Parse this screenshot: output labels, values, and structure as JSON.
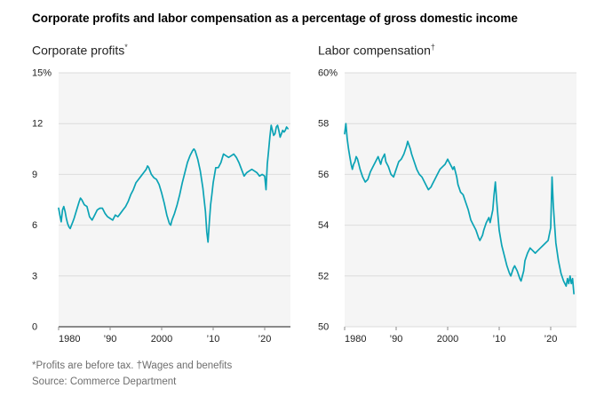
{
  "title": "Corporate profits and labor compensation as a percentage of gross domestic income",
  "footnotes": {
    "line1": "*Profits are before tax. †Wages and benefits",
    "line2": "Source: Commerce Department"
  },
  "theme": {
    "plot_bg": "#f5f5f5",
    "grid_color": "#dcdcdc",
    "axis_color": "#1a1a1a",
    "tick_text_color": "#222222",
    "tick_mark_color": "#8a8a8a",
    "accent": "#0ba3b5"
  },
  "chart_data": [
    {
      "type": "line",
      "title": "Corporate profits",
      "title_marker": "*",
      "ylim": [
        0,
        15
      ],
      "yticks": [
        0,
        3,
        6,
        9,
        12,
        15
      ],
      "ytick_labels": [
        "0",
        "3",
        "6",
        "9",
        "12",
        "15%"
      ],
      "xlim": [
        1980,
        2025
      ],
      "xticks": [
        1980,
        1990,
        2000,
        2010,
        2020
      ],
      "xtick_labels": [
        "1980",
        "’90",
        "2000",
        "’10",
        "’20"
      ],
      "baseline": 0,
      "grid": true,
      "legend": "none",
      "series": [
        {
          "name": "Corporate profits share of gross domestic income (%)",
          "color": "#0ba3b5",
          "points": [
            [
              1980,
              7.0
            ],
            [
              1980.25,
              6.6
            ],
            [
              1980.5,
              6.2
            ],
            [
              1980.75,
              6.9
            ],
            [
              1981,
              7.1
            ],
            [
              1981.25,
              6.8
            ],
            [
              1981.5,
              6.4
            ],
            [
              1981.75,
              6.1
            ],
            [
              1982,
              5.9
            ],
            [
              1982.25,
              5.8
            ],
            [
              1982.5,
              6.0
            ],
            [
              1982.75,
              6.2
            ],
            [
              1983,
              6.4
            ],
            [
              1983.5,
              6.9
            ],
            [
              1984,
              7.4
            ],
            [
              1984.25,
              7.6
            ],
            [
              1984.5,
              7.5
            ],
            [
              1985,
              7.2
            ],
            [
              1985.5,
              7.1
            ],
            [
              1986,
              6.5
            ],
            [
              1986.5,
              6.3
            ],
            [
              1987,
              6.6
            ],
            [
              1987.5,
              6.9
            ],
            [
              1988,
              7.0
            ],
            [
              1988.5,
              7.0
            ],
            [
              1989,
              6.7
            ],
            [
              1989.5,
              6.5
            ],
            [
              1990,
              6.4
            ],
            [
              1990.5,
              6.3
            ],
            [
              1991,
              6.6
            ],
            [
              1991.5,
              6.5
            ],
            [
              1992,
              6.7
            ],
            [
              1992.5,
              6.9
            ],
            [
              1993,
              7.1
            ],
            [
              1993.5,
              7.4
            ],
            [
              1994,
              7.8
            ],
            [
              1994.5,
              8.1
            ],
            [
              1995,
              8.5
            ],
            [
              1995.5,
              8.7
            ],
            [
              1996,
              8.9
            ],
            [
              1996.5,
              9.1
            ],
            [
              1997,
              9.3
            ],
            [
              1997.25,
              9.5
            ],
            [
              1997.5,
              9.4
            ],
            [
              1998,
              9.0
            ],
            [
              1998.5,
              8.8
            ],
            [
              1999,
              8.7
            ],
            [
              1999.5,
              8.4
            ],
            [
              2000,
              7.9
            ],
            [
              2000.5,
              7.3
            ],
            [
              2001,
              6.6
            ],
            [
              2001.5,
              6.1
            ],
            [
              2001.75,
              6.0
            ],
            [
              2002,
              6.3
            ],
            [
              2002.5,
              6.7
            ],
            [
              2003,
              7.2
            ],
            [
              2003.5,
              7.8
            ],
            [
              2004,
              8.5
            ],
            [
              2004.5,
              9.1
            ],
            [
              2005,
              9.7
            ],
            [
              2005.5,
              10.1
            ],
            [
              2006,
              10.4
            ],
            [
              2006.25,
              10.5
            ],
            [
              2006.5,
              10.4
            ],
            [
              2007,
              9.9
            ],
            [
              2007.5,
              9.2
            ],
            [
              2008,
              8.2
            ],
            [
              2008.5,
              6.8
            ],
            [
              2008.75,
              5.6
            ],
            [
              2009,
              5.0
            ],
            [
              2009.25,
              6.2
            ],
            [
              2009.5,
              7.2
            ],
            [
              2009.75,
              7.8
            ],
            [
              2010,
              8.5
            ],
            [
              2010.5,
              9.4
            ],
            [
              2011,
              9.4
            ],
            [
              2011.5,
              9.7
            ],
            [
              2012,
              10.2
            ],
            [
              2012.5,
              10.1
            ],
            [
              2013,
              10.0
            ],
            [
              2013.5,
              10.1
            ],
            [
              2014,
              10.2
            ],
            [
              2014.5,
              10.0
            ],
            [
              2015,
              9.7
            ],
            [
              2015.5,
              9.3
            ],
            [
              2016,
              8.9
            ],
            [
              2016.5,
              9.1
            ],
            [
              2017,
              9.2
            ],
            [
              2017.5,
              9.3
            ],
            [
              2018,
              9.2
            ],
            [
              2018.5,
              9.1
            ],
            [
              2019,
              8.9
            ],
            [
              2019.5,
              9.0
            ],
            [
              2020,
              8.9
            ],
            [
              2020.25,
              8.1
            ],
            [
              2020.5,
              9.6
            ],
            [
              2020.75,
              10.4
            ],
            [
              2021,
              11.2
            ],
            [
              2021.25,
              11.9
            ],
            [
              2021.5,
              11.6
            ],
            [
              2021.75,
              11.3
            ],
            [
              2022,
              11.4
            ],
            [
              2022.25,
              11.8
            ],
            [
              2022.5,
              11.9
            ],
            [
              2022.75,
              11.6
            ],
            [
              2023,
              11.2
            ],
            [
              2023.25,
              11.4
            ],
            [
              2023.5,
              11.6
            ],
            [
              2023.75,
              11.5
            ],
            [
              2024,
              11.6
            ],
            [
              2024.25,
              11.8
            ],
            [
              2024.5,
              11.7
            ]
          ]
        }
      ]
    },
    {
      "type": "line",
      "title": "Labor compensation",
      "title_marker": "†",
      "ylim": [
        50,
        60
      ],
      "yticks": [
        50,
        52,
        54,
        56,
        58,
        60
      ],
      "ytick_labels": [
        "50",
        "52",
        "54",
        "56",
        "58",
        "60%"
      ],
      "xlim": [
        1980,
        2025
      ],
      "xticks": [
        1980,
        1990,
        2000,
        2010,
        2020
      ],
      "xtick_labels": [
        "1980",
        "’90",
        "2000",
        "’10",
        "’20"
      ],
      "baseline": null,
      "grid": true,
      "legend": "none",
      "series": [
        {
          "name": "Labor compensation share of gross domestic income (%)",
          "color": "#0ba3b5",
          "points": [
            [
              1980,
              57.6
            ],
            [
              1980.25,
              58.0
            ],
            [
              1980.5,
              57.4
            ],
            [
              1980.75,
              57.0
            ],
            [
              1981,
              56.7
            ],
            [
              1981.25,
              56.4
            ],
            [
              1981.5,
              56.2
            ],
            [
              1981.75,
              56.4
            ],
            [
              1982,
              56.5
            ],
            [
              1982.25,
              56.7
            ],
            [
              1982.5,
              56.6
            ],
            [
              1982.75,
              56.4
            ],
            [
              1983,
              56.2
            ],
            [
              1983.5,
              55.9
            ],
            [
              1984,
              55.7
            ],
            [
              1984.5,
              55.8
            ],
            [
              1985,
              56.1
            ],
            [
              1985.5,
              56.3
            ],
            [
              1986,
              56.5
            ],
            [
              1986.5,
              56.7
            ],
            [
              1987,
              56.4
            ],
            [
              1987.25,
              56.6
            ],
            [
              1987.75,
              56.8
            ],
            [
              1988,
              56.5
            ],
            [
              1988.5,
              56.3
            ],
            [
              1989,
              56.0
            ],
            [
              1989.5,
              55.9
            ],
            [
              1990,
              56.2
            ],
            [
              1990.5,
              56.5
            ],
            [
              1991,
              56.6
            ],
            [
              1991.5,
              56.8
            ],
            [
              1992,
              57.1
            ],
            [
              1992.25,
              57.3
            ],
            [
              1992.75,
              57.0
            ],
            [
              1993,
              56.8
            ],
            [
              1993.5,
              56.5
            ],
            [
              1994,
              56.2
            ],
            [
              1994.5,
              56.0
            ],
            [
              1995,
              55.9
            ],
            [
              1995.5,
              55.7
            ],
            [
              1996,
              55.5
            ],
            [
              1996.25,
              55.4
            ],
            [
              1996.75,
              55.5
            ],
            [
              1997,
              55.6
            ],
            [
              1997.5,
              55.8
            ],
            [
              1998,
              56.0
            ],
            [
              1998.5,
              56.2
            ],
            [
              1999,
              56.3
            ],
            [
              1999.5,
              56.4
            ],
            [
              2000,
              56.6
            ],
            [
              2000.25,
              56.5
            ],
            [
              2000.75,
              56.3
            ],
            [
              2001,
              56.2
            ],
            [
              2001.25,
              56.3
            ],
            [
              2001.75,
              55.9
            ],
            [
              2002,
              55.6
            ],
            [
              2002.5,
              55.3
            ],
            [
              2003,
              55.2
            ],
            [
              2003.5,
              54.9
            ],
            [
              2004,
              54.6
            ],
            [
              2004.5,
              54.2
            ],
            [
              2005,
              54.0
            ],
            [
              2005.5,
              53.8
            ],
            [
              2006,
              53.5
            ],
            [
              2006.25,
              53.4
            ],
            [
              2006.75,
              53.6
            ],
            [
              2007,
              53.8
            ],
            [
              2007.5,
              54.1
            ],
            [
              2008,
              54.3
            ],
            [
              2008.25,
              54.1
            ],
            [
              2008.75,
              54.6
            ],
            [
              2009,
              55.2
            ],
            [
              2009.25,
              55.7
            ],
            [
              2009.5,
              55.0
            ],
            [
              2009.75,
              54.4
            ],
            [
              2010,
              53.8
            ],
            [
              2010.5,
              53.2
            ],
            [
              2011,
              52.8
            ],
            [
              2011.5,
              52.4
            ],
            [
              2012,
              52.1
            ],
            [
              2012.25,
              52.0
            ],
            [
              2012.75,
              52.3
            ],
            [
              2013,
              52.4
            ],
            [
              2013.5,
              52.2
            ],
            [
              2014,
              51.9
            ],
            [
              2014.25,
              51.8
            ],
            [
              2014.75,
              52.2
            ],
            [
              2015,
              52.6
            ],
            [
              2015.5,
              52.9
            ],
            [
              2016,
              53.1
            ],
            [
              2016.5,
              53.0
            ],
            [
              2017,
              52.9
            ],
            [
              2017.5,
              53.0
            ],
            [
              2018,
              53.1
            ],
            [
              2018.5,
              53.2
            ],
            [
              2019,
              53.3
            ],
            [
              2019.5,
              53.4
            ],
            [
              2020,
              53.9
            ],
            [
              2020.25,
              55.9
            ],
            [
              2020.5,
              54.8
            ],
            [
              2020.75,
              54.0
            ],
            [
              2021,
              53.3
            ],
            [
              2021.5,
              52.6
            ],
            [
              2022,
              52.1
            ],
            [
              2022.5,
              51.8
            ],
            [
              2023,
              51.6
            ],
            [
              2023.25,
              51.9
            ],
            [
              2023.5,
              51.7
            ],
            [
              2023.75,
              52.0
            ],
            [
              2024,
              51.7
            ],
            [
              2024.25,
              51.9
            ],
            [
              2024.5,
              51.3
            ]
          ]
        }
      ]
    }
  ]
}
